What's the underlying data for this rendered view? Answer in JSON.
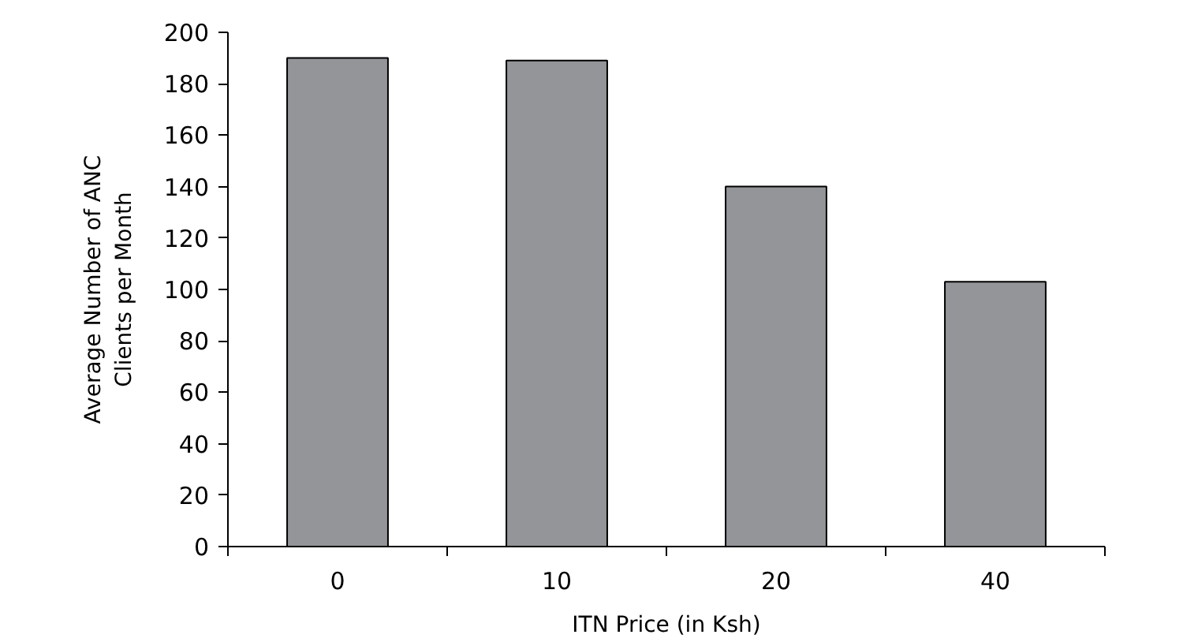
{
  "chart_data": {
    "type": "bar",
    "xlabel": "ITN Price (in Ksh)",
    "ylabel": "Average Number of ANC\nClients per Month",
    "categories": [
      "0",
      "10",
      "20",
      "40"
    ],
    "values": [
      190,
      189,
      140,
      103
    ],
    "color": "#939598",
    "ylim": [
      0,
      200
    ],
    "yticks": [
      0,
      20,
      40,
      60,
      80,
      100,
      120,
      140,
      160,
      180,
      200
    ],
    "grid": false
  }
}
